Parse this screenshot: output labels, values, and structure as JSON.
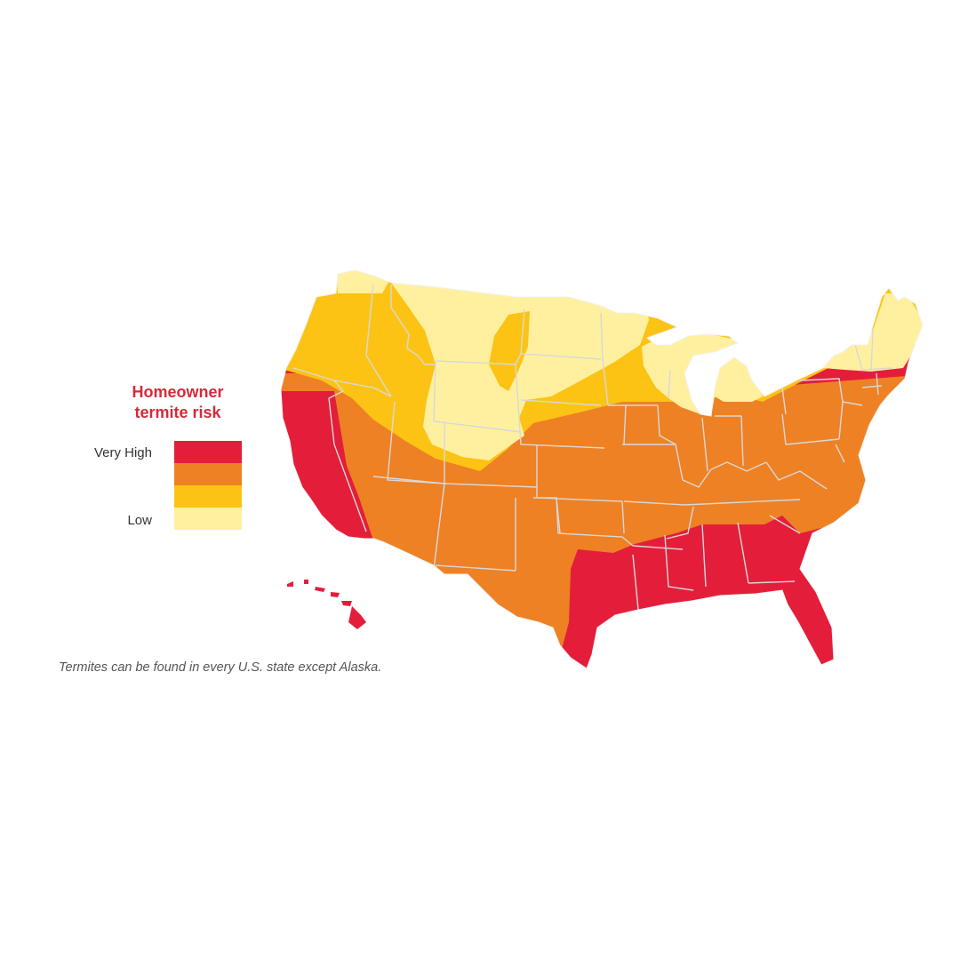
{
  "legend": {
    "title_line1": "Homeowner",
    "title_line2": "termite risk",
    "label_high": "Very High",
    "label_low": "Low",
    "levels": [
      {
        "level": "very-high",
        "color": "#E41E3A"
      },
      {
        "level": "high",
        "color": "#EE8124"
      },
      {
        "level": "moderate",
        "color": "#FCC314"
      },
      {
        "level": "low",
        "color": "#FFF0A0"
      }
    ]
  },
  "map": {
    "region": "United States (contiguous 48 + Hawaii)",
    "border_color": "#d8d8d8",
    "risk_zones": [
      {
        "level": "very-high",
        "areas": [
          "California",
          "Texas (east/gulf coast)",
          "Louisiana",
          "Mississippi",
          "Alabama",
          "Georgia",
          "South Carolina",
          "Florida",
          "Hawaii"
        ]
      },
      {
        "level": "high",
        "areas": [
          "Nevada",
          "Arizona",
          "Utah (south)",
          "New Mexico",
          "Oklahoma",
          "Kansas",
          "Missouri",
          "Arkansas",
          "Iowa",
          "Illinois",
          "Indiana",
          "Ohio",
          "Kentucky",
          "Tennessee",
          "North Carolina",
          "Virginia",
          "West Virginia",
          "Pennsylvania",
          "New York",
          "New Jersey",
          "Maryland",
          "Delaware",
          "Connecticut",
          "Rhode Island",
          "Massachusetts",
          "Texas (west)"
        ]
      },
      {
        "level": "moderate",
        "areas": [
          "Washington",
          "Oregon",
          "Idaho",
          "Nebraska",
          "Minnesota (south)",
          "Colorado (south)",
          "Utah (north)"
        ]
      },
      {
        "level": "low",
        "areas": [
          "Montana",
          "Wyoming",
          "North Dakota",
          "South Dakota",
          "Minnesota (north)",
          "Wisconsin",
          "Michigan",
          "Vermont",
          "New Hampshire",
          "Maine"
        ]
      }
    ]
  },
  "caption": "Termites can be found in every U.S. state except Alaska."
}
